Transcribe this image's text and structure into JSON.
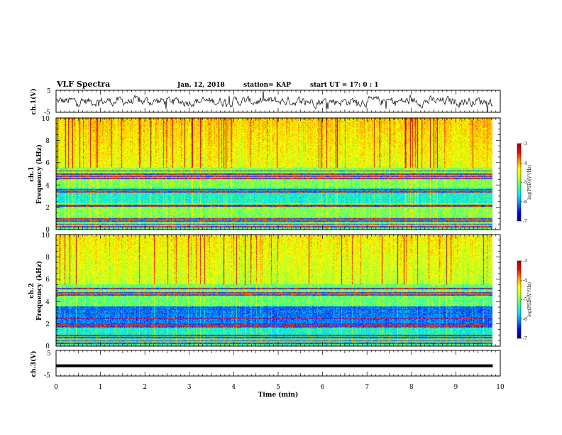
{
  "header": {
    "title": "VLF Spectra",
    "date": "Jan. 12, 2018",
    "station": "station= KAP",
    "start": "start  UT =   17: 0  : 1"
  },
  "chart_data": [
    {
      "type": "line",
      "panel": "ch1-waveform",
      "ylabel": "ch.1(V)",
      "ylim": [
        -5,
        5
      ],
      "yticks": [
        "5",
        "-5"
      ],
      "x_range_min": [
        0,
        9.83
      ],
      "description_values": "noisy waveform mostly between -3 and 3 V, baseline near 0 V"
    },
    {
      "type": "heatmap",
      "panel": "ch1-spectrogram",
      "ylabel": "ch.1\nFrequency (kHz)",
      "ylim": [
        0,
        10
      ],
      "yticks": [
        "0",
        "2",
        "4",
        "6",
        "8",
        "10"
      ],
      "x_range_min": [
        0,
        9.83
      ],
      "colorbar": {
        "label": "log(PSD)(V²/Hz)",
        "range": [
          -7,
          -3
        ],
        "ticks": [
          "-3",
          "-4",
          "-5",
          "-6",
          "-7"
        ]
      },
      "horizontal_lines_khz": [
        0.3,
        0.5,
        0.8,
        1.0,
        2.1,
        2.2,
        3.4,
        3.6,
        4.6,
        4.8,
        5.0,
        5.3
      ]
    },
    {
      "type": "heatmap",
      "panel": "ch2-spectrogram",
      "ylabel": "ch.2\nFrequency (kHz)",
      "ylim": [
        0,
        10
      ],
      "yticks": [
        "0",
        "2",
        "4",
        "6",
        "8",
        "10"
      ],
      "x_range_min": [
        0,
        9.83
      ],
      "colorbar": {
        "label": "log(PSD)(V²/Hz)",
        "range": [
          -7,
          -3
        ],
        "ticks": [
          "-3",
          "-4",
          "-5",
          "-6",
          "-7"
        ]
      },
      "horizontal_lines_khz": [
        0.3,
        0.5,
        0.8,
        1.0,
        1.8,
        2.0,
        2.5,
        3.0,
        3.3,
        3.5,
        4.6,
        4.8,
        5.2
      ]
    },
    {
      "type": "line",
      "panel": "ch3-waveform",
      "ylabel": "ch.3(V)",
      "ylim": [
        -5,
        5
      ],
      "yticks": [
        "5",
        "-5"
      ],
      "x_range_min": [
        0,
        9.83
      ],
      "values_level_v": -1,
      "xlabel": "Time (min)",
      "xlim": [
        0,
        10
      ],
      "xticks": [
        "0",
        "1",
        "2",
        "3",
        "4",
        "5",
        "6",
        "7",
        "8",
        "9",
        "10"
      ]
    }
  ],
  "colors": {
    "colormap": [
      "#00007f",
      "#0000ff",
      "#0080ff",
      "#00e5ff",
      "#40ff80",
      "#c0ff20",
      "#ffff00",
      "#ff9000",
      "#ff0000",
      "#a00000"
    ]
  }
}
